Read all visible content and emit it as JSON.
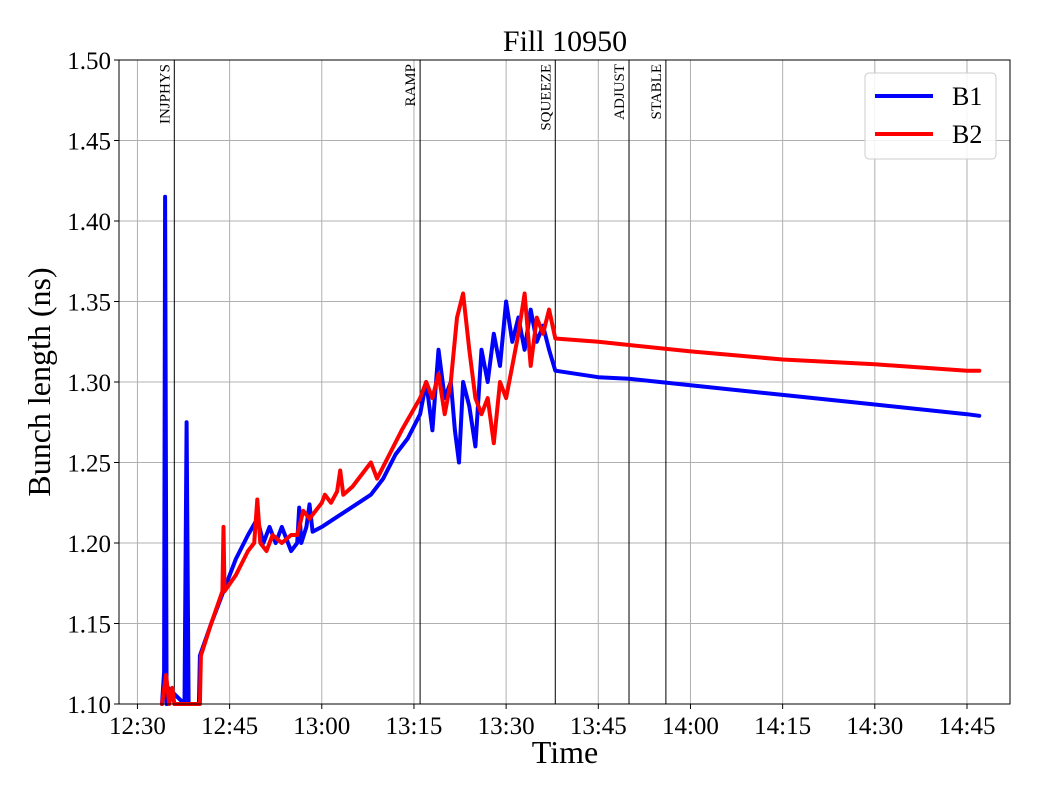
{
  "chart_data": {
    "type": "line",
    "title": "Fill 10950",
    "xlabel": "Time",
    "ylabel": "Bunch length (ns)",
    "xlim": [
      "12:27",
      "14:52"
    ],
    "ylim": [
      1.1,
      1.5
    ],
    "grid": true,
    "legend_placement": "top-right",
    "x_ticks": [
      "12:30",
      "12:45",
      "13:00",
      "13:15",
      "13:30",
      "13:45",
      "14:00",
      "14:15",
      "14:30",
      "14:45"
    ],
    "y_ticks": [
      "1.10",
      "1.15",
      "1.20",
      "1.25",
      "1.30",
      "1.35",
      "1.40",
      "1.45",
      "1.50"
    ],
    "phases": [
      {
        "label": "INJPHYS",
        "time": "12:36"
      },
      {
        "label": "RAMP",
        "time": "13:16"
      },
      {
        "label": "SQUEEZE",
        "time": "13:38"
      },
      {
        "label": "ADJUST",
        "time": "13:50"
      },
      {
        "label": "STABLE",
        "time": "13:56"
      }
    ],
    "series": [
      {
        "name": "B1",
        "color": "#0000ff",
        "points": [
          [
            "12:34:00",
            1.1
          ],
          [
            "12:34:20",
            1.12
          ],
          [
            "12:34:30",
            1.415
          ],
          [
            "12:34:45",
            1.1
          ],
          [
            "12:35:00",
            1.11
          ],
          [
            "12:37:40",
            1.1
          ],
          [
            "12:38:00",
            1.275
          ],
          [
            "12:38:20",
            1.1
          ],
          [
            "12:40:00",
            1.1
          ],
          [
            "12:40:10",
            1.13
          ],
          [
            "12:42:00",
            1.15
          ],
          [
            "12:44:00",
            1.17
          ],
          [
            "12:46:00",
            1.19
          ],
          [
            "12:48:00",
            1.205
          ],
          [
            "12:49:30",
            1.215
          ],
          [
            "12:50:30",
            1.2
          ],
          [
            "12:51:30",
            1.21
          ],
          [
            "12:52:30",
            1.2
          ],
          [
            "12:53:30",
            1.21
          ],
          [
            "12:55:00",
            1.195
          ],
          [
            "12:56:00",
            1.2
          ],
          [
            "12:56:20",
            1.222
          ],
          [
            "12:56:40",
            1.2
          ],
          [
            "12:57:30",
            1.21
          ],
          [
            "12:58:00",
            1.224
          ],
          [
            "12:58:30",
            1.207
          ],
          [
            "13:00:00",
            1.21
          ],
          [
            "13:02:00",
            1.215
          ],
          [
            "13:04:00",
            1.22
          ],
          [
            "13:06:00",
            1.225
          ],
          [
            "13:08:00",
            1.23
          ],
          [
            "13:10:00",
            1.24
          ],
          [
            "13:12:00",
            1.255
          ],
          [
            "13:14:00",
            1.265
          ],
          [
            "13:16:00",
            1.28
          ],
          [
            "13:17:00",
            1.3
          ],
          [
            "13:18:00",
            1.27
          ],
          [
            "13:19:00",
            1.32
          ],
          [
            "13:20:00",
            1.29
          ],
          [
            "13:21:00",
            1.3
          ],
          [
            "13:21:40",
            1.27
          ],
          [
            "13:22:20",
            1.25
          ],
          [
            "13:23:00",
            1.3
          ],
          [
            "13:24:00",
            1.285
          ],
          [
            "13:25:00",
            1.26
          ],
          [
            "13:26:00",
            1.32
          ],
          [
            "13:27:00",
            1.3
          ],
          [
            "13:28:00",
            1.33
          ],
          [
            "13:29:00",
            1.31
          ],
          [
            "13:30:00",
            1.35
          ],
          [
            "13:31:00",
            1.325
          ],
          [
            "13:32:00",
            1.34
          ],
          [
            "13:33:00",
            1.32
          ],
          [
            "13:34:00",
            1.345
          ],
          [
            "13:35:00",
            1.325
          ],
          [
            "13:36:00",
            1.335
          ],
          [
            "13:37:00",
            1.32
          ],
          [
            "13:38:00",
            1.307
          ],
          [
            "13:45:00",
            1.303
          ],
          [
            "13:50:00",
            1.302
          ],
          [
            "14:00:00",
            1.298
          ],
          [
            "14:15:00",
            1.292
          ],
          [
            "14:30:00",
            1.286
          ],
          [
            "14:45:00",
            1.28
          ],
          [
            "14:47:00",
            1.279
          ]
        ]
      },
      {
        "name": "B2",
        "color": "#ff0000",
        "points": [
          [
            "12:34:00",
            1.1
          ],
          [
            "12:34:40",
            1.118
          ],
          [
            "12:35:10",
            1.1
          ],
          [
            "12:35:40",
            1.11
          ],
          [
            "12:36:00",
            1.1
          ],
          [
            "12:40:10",
            1.1
          ],
          [
            "12:40:20",
            1.13
          ],
          [
            "12:42:00",
            1.15
          ],
          [
            "12:43:50",
            1.17
          ],
          [
            "12:44:00",
            1.21
          ],
          [
            "12:44:10",
            1.17
          ],
          [
            "12:46:00",
            1.18
          ],
          [
            "12:48:00",
            1.195
          ],
          [
            "12:49:00",
            1.2
          ],
          [
            "12:49:30",
            1.227
          ],
          [
            "12:50:00",
            1.2
          ],
          [
            "12:51:00",
            1.195
          ],
          [
            "12:52:00",
            1.205
          ],
          [
            "12:53:30",
            1.2
          ],
          [
            "12:55:00",
            1.205
          ],
          [
            "12:56:00",
            1.205
          ],
          [
            "12:57:00",
            1.22
          ],
          [
            "12:58:00",
            1.215
          ],
          [
            "13:00:00",
            1.225
          ],
          [
            "13:00:30",
            1.23
          ],
          [
            "13:01:30",
            1.225
          ],
          [
            "13:02:30",
            1.232
          ],
          [
            "13:03:00",
            1.245
          ],
          [
            "13:03:30",
            1.23
          ],
          [
            "13:05:00",
            1.235
          ],
          [
            "13:07:00",
            1.245
          ],
          [
            "13:08:00",
            1.25
          ],
          [
            "13:09:00",
            1.24
          ],
          [
            "13:11:00",
            1.255
          ],
          [
            "13:13:00",
            1.27
          ],
          [
            "13:16:00",
            1.29
          ],
          [
            "13:17:00",
            1.3
          ],
          [
            "13:18:00",
            1.29
          ],
          [
            "13:19:00",
            1.305
          ],
          [
            "13:20:00",
            1.28
          ],
          [
            "13:21:00",
            1.3
          ],
          [
            "13:22:00",
            1.34
          ],
          [
            "13:23:00",
            1.355
          ],
          [
            "13:24:00",
            1.32
          ],
          [
            "13:25:00",
            1.29
          ],
          [
            "13:26:00",
            1.28
          ],
          [
            "13:27:00",
            1.29
          ],
          [
            "13:28:00",
            1.262
          ],
          [
            "13:29:00",
            1.3
          ],
          [
            "13:30:00",
            1.29
          ],
          [
            "13:31:00",
            1.31
          ],
          [
            "13:32:00",
            1.33
          ],
          [
            "13:33:00",
            1.355
          ],
          [
            "13:34:00",
            1.31
          ],
          [
            "13:35:00",
            1.34
          ],
          [
            "13:36:00",
            1.33
          ],
          [
            "13:37:00",
            1.345
          ],
          [
            "13:38:00",
            1.327
          ],
          [
            "13:45:00",
            1.325
          ],
          [
            "13:50:00",
            1.323
          ],
          [
            "14:00:00",
            1.319
          ],
          [
            "14:15:00",
            1.314
          ],
          [
            "14:30:00",
            1.311
          ],
          [
            "14:45:00",
            1.307
          ],
          [
            "14:47:00",
            1.307
          ]
        ]
      }
    ]
  }
}
